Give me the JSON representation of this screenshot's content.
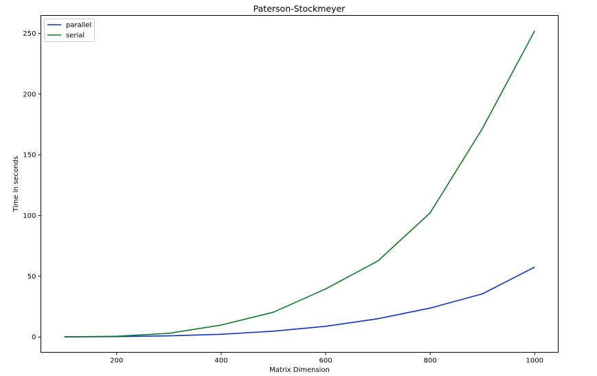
{
  "chart_data": {
    "type": "line",
    "title": "Paterson-Stockmeyer",
    "xlabel": "Matrix Dimension",
    "ylabel": "Time in seconds",
    "x": [
      100,
      200,
      300,
      400,
      500,
      600,
      700,
      800,
      900,
      1000
    ],
    "xlim": [
      55,
      1045
    ],
    "ylim": [
      -12.6,
      264.7
    ],
    "xticks": [
      200,
      400,
      600,
      800,
      1000
    ],
    "yticks": [
      0,
      50,
      100,
      150,
      200,
      250
    ],
    "grid": false,
    "legend_position": "top-left",
    "series": [
      {
        "name": "parallel",
        "color": "#0a32c8",
        "values": [
          0.1,
          0.3,
          0.9,
          2.2,
          4.8,
          8.8,
          15.0,
          23.8,
          35.5,
          57.6
        ]
      },
      {
        "name": "serial",
        "color": "#0a7a1e",
        "values": [
          0.1,
          0.6,
          3.0,
          9.8,
          20.4,
          39.6,
          62.6,
          102.2,
          171.6,
          252.1
        ]
      }
    ]
  }
}
